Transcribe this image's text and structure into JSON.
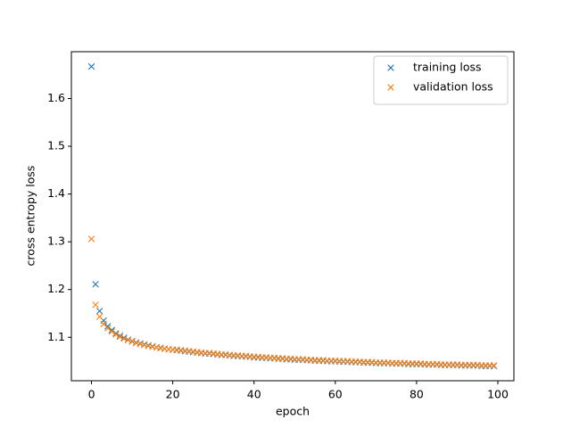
{
  "chart_data": {
    "type": "scatter",
    "marker": "x",
    "x_label": "epoch",
    "y_label": "cross entropy loss",
    "x": [
      0,
      1,
      2,
      3,
      4,
      5,
      6,
      7,
      8,
      9,
      10,
      11,
      12,
      13,
      14,
      15,
      16,
      17,
      18,
      19,
      20,
      21,
      22,
      23,
      24,
      25,
      26,
      27,
      28,
      29,
      30,
      31,
      32,
      33,
      34,
      35,
      36,
      37,
      38,
      39,
      40,
      41,
      42,
      43,
      44,
      45,
      46,
      47,
      48,
      49,
      50,
      51,
      52,
      53,
      54,
      55,
      56,
      57,
      58,
      59,
      60,
      61,
      62,
      63,
      64,
      65,
      66,
      67,
      68,
      69,
      70,
      71,
      72,
      73,
      74,
      75,
      76,
      77,
      78,
      79,
      80,
      81,
      82,
      83,
      84,
      85,
      86,
      87,
      88,
      89,
      90,
      91,
      92,
      93,
      94,
      95,
      96,
      97,
      98,
      99
    ],
    "series": [
      {
        "name": "training loss",
        "color": "#1f77b4",
        "values": [
          1.667,
          1.211,
          1.155,
          1.135,
          1.123,
          1.115,
          1.108,
          1.103,
          1.099,
          1.095,
          1.092,
          1.089,
          1.087,
          1.085,
          1.083,
          1.081,
          1.079,
          1.078,
          1.076,
          1.075,
          1.074,
          1.073,
          1.072,
          1.071,
          1.07,
          1.069,
          1.068,
          1.067,
          1.066,
          1.066,
          1.065,
          1.064,
          1.063,
          1.063,
          1.062,
          1.061,
          1.061,
          1.06,
          1.06,
          1.059,
          1.058,
          1.058,
          1.057,
          1.057,
          1.056,
          1.056,
          1.055,
          1.055,
          1.054,
          1.054,
          1.053,
          1.053,
          1.053,
          1.052,
          1.052,
          1.051,
          1.051,
          1.051,
          1.05,
          1.05,
          1.05,
          1.049,
          1.049,
          1.049,
          1.048,
          1.048,
          1.048,
          1.047,
          1.047,
          1.047,
          1.046,
          1.046,
          1.046,
          1.046,
          1.045,
          1.045,
          1.045,
          1.045,
          1.044,
          1.044,
          1.044,
          1.044,
          1.043,
          1.043,
          1.043,
          1.043,
          1.042,
          1.042,
          1.042,
          1.042,
          1.042,
          1.041,
          1.041,
          1.041,
          1.041,
          1.041,
          1.04,
          1.04,
          1.04,
          1.04
        ]
      },
      {
        "name": "validation loss",
        "color": "#ff7f0e",
        "values": [
          1.306,
          1.168,
          1.143,
          1.128,
          1.119,
          1.112,
          1.106,
          1.101,
          1.097,
          1.094,
          1.091,
          1.088,
          1.086,
          1.084,
          1.082,
          1.08,
          1.079,
          1.077,
          1.076,
          1.075,
          1.074,
          1.074,
          1.073,
          1.072,
          1.071,
          1.07,
          1.069,
          1.068,
          1.067,
          1.067,
          1.066,
          1.065,
          1.064,
          1.064,
          1.063,
          1.062,
          1.062,
          1.061,
          1.061,
          1.06,
          1.059,
          1.059,
          1.058,
          1.058,
          1.057,
          1.057,
          1.056,
          1.056,
          1.055,
          1.055,
          1.054,
          1.054,
          1.054,
          1.053,
          1.053,
          1.052,
          1.052,
          1.052,
          1.051,
          1.051,
          1.051,
          1.05,
          1.05,
          1.05,
          1.049,
          1.049,
          1.049,
          1.048,
          1.048,
          1.048,
          1.047,
          1.047,
          1.047,
          1.047,
          1.046,
          1.046,
          1.046,
          1.046,
          1.045,
          1.045,
          1.045,
          1.045,
          1.044,
          1.044,
          1.044,
          1.044,
          1.043,
          1.043,
          1.043,
          1.043,
          1.043,
          1.042,
          1.042,
          1.042,
          1.042,
          1.042,
          1.041,
          1.041,
          1.041,
          1.041
        ]
      }
    ],
    "xlim": [
      -4.95,
      103.95
    ],
    "xticks": [
      0,
      20,
      40,
      60,
      80,
      100
    ],
    "ylim": [
      1.009,
      1.698
    ],
    "yticks": [
      1.1,
      1.2,
      1.3,
      1.4,
      1.5,
      1.6
    ],
    "grid": false,
    "legend": "upper right"
  }
}
